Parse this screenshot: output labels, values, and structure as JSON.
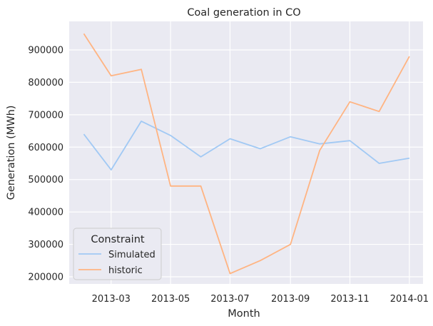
{
  "chart_data": {
    "type": "line",
    "title": "Coal generation in CO",
    "xlabel": "Month",
    "ylabel": "Generation (MWh)",
    "x": [
      "2013-02-01",
      "2013-03-01",
      "2013-04-01",
      "2013-05-01",
      "2013-06-01",
      "2013-07-01",
      "2013-08-01",
      "2013-09-01",
      "2013-10-01",
      "2013-11-01",
      "2013-12-01",
      "2014-01-01"
    ],
    "xlim": [
      "2013-01-17",
      "2014-01-15"
    ],
    "xticks": [
      "2013-03",
      "2013-05",
      "2013-07",
      "2013-09",
      "2013-11",
      "2014-01"
    ],
    "ylim": [
      178000,
      988000
    ],
    "yticks": [
      "200000",
      "300000",
      "400000",
      "500000",
      "600000",
      "700000",
      "800000",
      "900000"
    ],
    "series": [
      {
        "name": "Simulated",
        "color": "#a1c9f4",
        "values": [
          640000,
          530000,
          680000,
          636000,
          570000,
          626000,
          595000,
          632000,
          610000,
          620000,
          550000,
          566000
        ]
      },
      {
        "name": "historic",
        "color": "#ffb482",
        "values": [
          950000,
          820000,
          840000,
          480000,
          480000,
          210000,
          250000,
          300000,
          590000,
          740000,
          710000,
          880000
        ]
      }
    ],
    "legend": {
      "title": "Constraint",
      "position": "lower-left"
    },
    "grid": true
  }
}
